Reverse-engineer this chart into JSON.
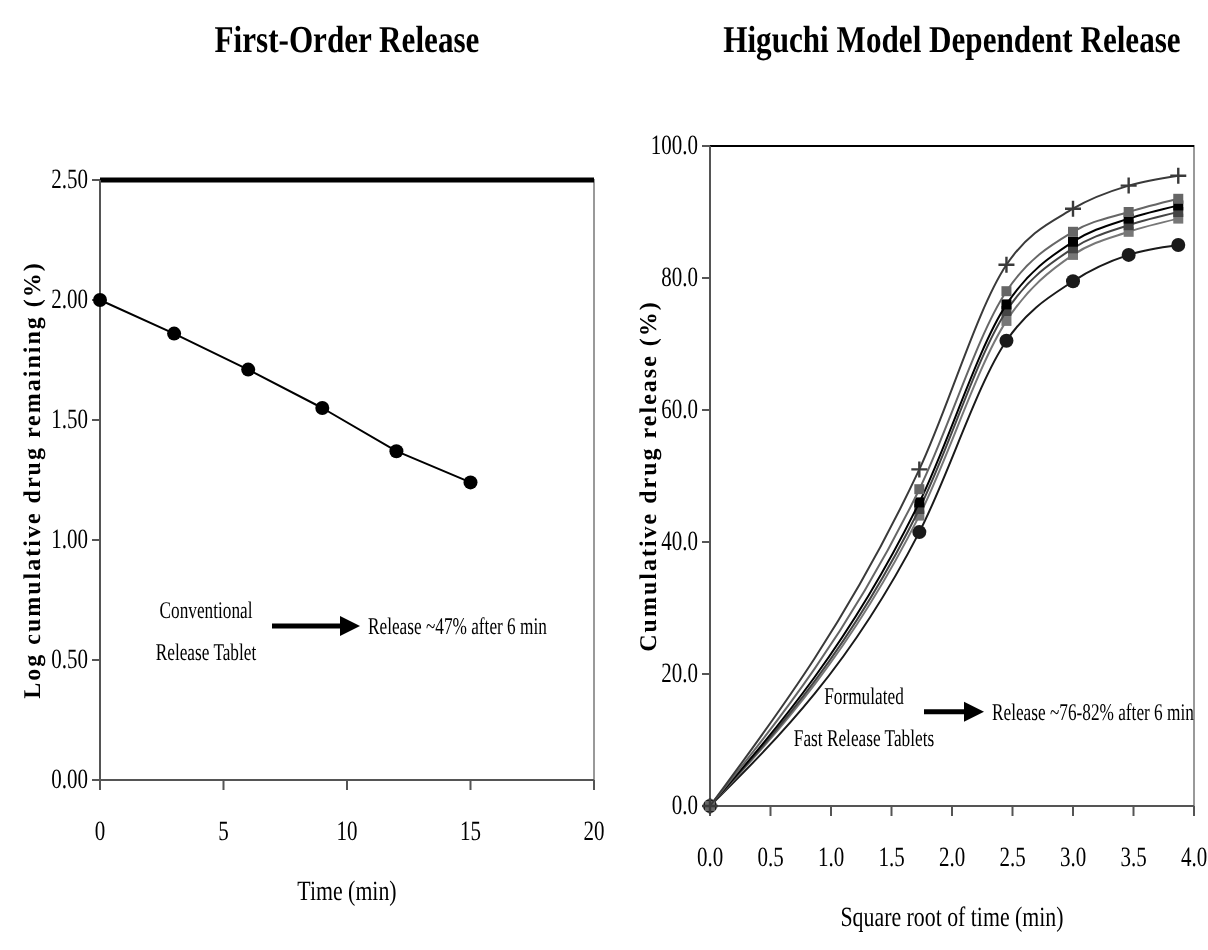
{
  "chart_data": [
    {
      "type": "line",
      "title": "First-Order Release",
      "xlabel": "Time (min)",
      "ylabel": "Log cumulative drug remaining (%)",
      "xlim": [
        0,
        20
      ],
      "xticks": [
        0,
        5,
        10,
        15,
        20
      ],
      "ylim": [
        0,
        2.5
      ],
      "yticks": [
        {
          "value": 0,
          "label": "0.00"
        },
        {
          "value": 0.5,
          "label": "0.50"
        },
        {
          "value": 1,
          "label": "1.00"
        },
        {
          "value": 1.5,
          "label": "1.50"
        },
        {
          "value": 2,
          "label": "2.00"
        },
        {
          "value": 2.5,
          "label": "2.50"
        }
      ],
      "x": [
        0,
        3,
        6,
        9,
        12,
        15
      ],
      "marker": "circle",
      "grid": false,
      "series": [
        {
          "color": "#000000",
          "values": [
            2.0,
            1.86,
            1.71,
            1.55,
            1.37,
            1.24
          ]
        }
      ],
      "annotations": [
        "Conventional\nRelease Tablet",
        "Release ~47% after 6 min"
      ]
    },
    {
      "type": "line",
      "title": "Higuchi Model Dependent Release",
      "xlabel": "Square root of time (min)",
      "ylabel": "Cumulative drug release (%)",
      "xlim": [
        0,
        4
      ],
      "xticks": [
        {
          "value": 0,
          "label": "0.0"
        },
        {
          "value": 0.5,
          "label": "0.5"
        },
        {
          "value": 1,
          "label": "1.0"
        },
        {
          "value": 1.5,
          "label": "1.5"
        },
        {
          "value": 2,
          "label": "2.0"
        },
        {
          "value": 2.5,
          "label": "2.5"
        },
        {
          "value": 3,
          "label": "3.0"
        },
        {
          "value": 3.5,
          "label": "3.5"
        },
        {
          "value": 4,
          "label": "4.0"
        }
      ],
      "ylim": [
        0,
        100
      ],
      "yticks": [
        {
          "value": 0,
          "label": "0.0"
        },
        {
          "value": 20,
          "label": "20.0"
        },
        {
          "value": 40,
          "label": "40.0"
        },
        {
          "value": 60,
          "label": "60.0"
        },
        {
          "value": 80,
          "label": "80.0"
        },
        {
          "value": 100,
          "label": "100.0"
        }
      ],
      "x": [
        0,
        1.73,
        2.45,
        3.0,
        3.46,
        3.87
      ],
      "grid": false,
      "series": [
        {
          "color": "#3a3a3a",
          "marker": "cross",
          "values": [
            0,
            51,
            82,
            90.5,
            94,
            95.5
          ]
        },
        {
          "color": "#666666",
          "marker": "square",
          "values": [
            0,
            48,
            78,
            87,
            90,
            92
          ]
        },
        {
          "color": "#000000",
          "marker": "square",
          "values": [
            0,
            46,
            76,
            85.5,
            89,
            91
          ]
        },
        {
          "color": "#444444",
          "marker": "square",
          "values": [
            0,
            45,
            75,
            84.5,
            88,
            90
          ]
        },
        {
          "color": "#777777",
          "marker": "square",
          "values": [
            0,
            44,
            73.5,
            83.5,
            87,
            89
          ]
        },
        {
          "color": "#1a1a1a",
          "marker": "circle",
          "values": [
            0,
            41.5,
            70.5,
            79.5,
            83.5,
            85
          ]
        }
      ],
      "annotations": [
        "Formulated\nFast Release Tablets",
        "Release ~76-82% after 6 min"
      ]
    }
  ]
}
